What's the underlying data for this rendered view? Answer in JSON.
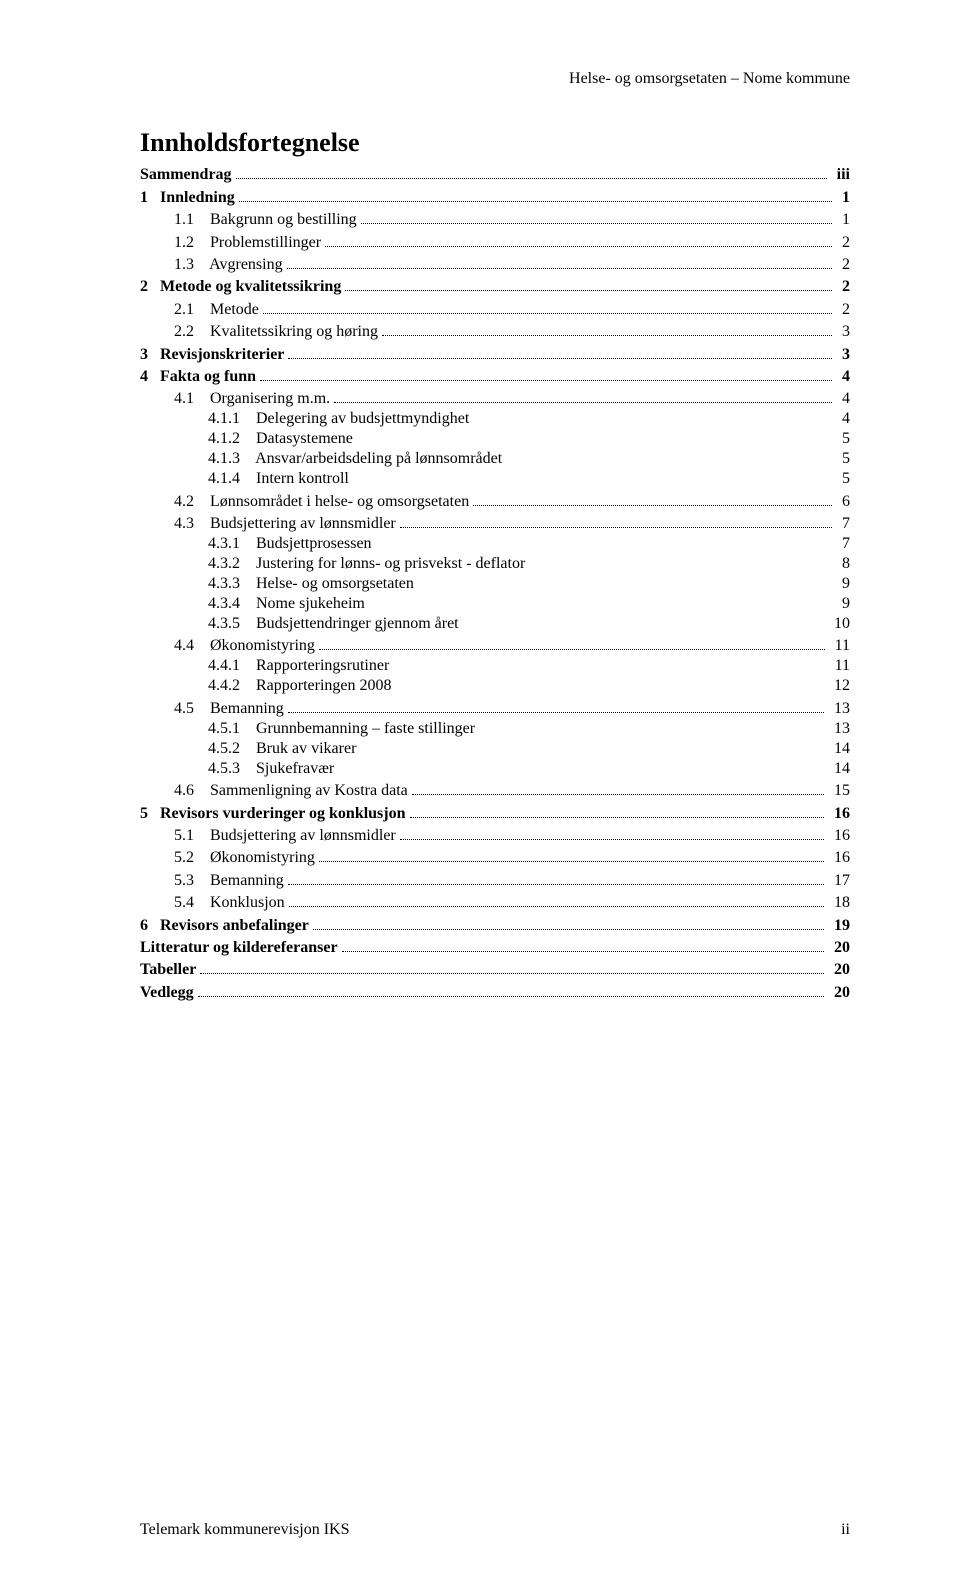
{
  "running_header": "Helse- og omsorgsetaten – Nome kommune",
  "title": "Innholdsfortegnelse",
  "toc": [
    {
      "level": 0,
      "bold": true,
      "dotted": true,
      "label": "Sammendrag",
      "page": "iii"
    },
    {
      "level": 0,
      "bold": true,
      "dotted": true,
      "label": "1   Innledning",
      "page": "1"
    },
    {
      "level": 1,
      "bold": false,
      "dotted": true,
      "label": "1.1    Bakgrunn og bestilling",
      "page": "1"
    },
    {
      "level": 1,
      "bold": false,
      "dotted": true,
      "label": "1.2    Problemstillinger",
      "page": "2"
    },
    {
      "level": 1,
      "bold": false,
      "dotted": true,
      "label": "1.3    Avgrensing",
      "page": "2"
    },
    {
      "level": 0,
      "bold": true,
      "dotted": true,
      "label": "2   Metode og kvalitetssikring",
      "page": "2"
    },
    {
      "level": 1,
      "bold": false,
      "dotted": true,
      "label": "2.1    Metode",
      "page": "2"
    },
    {
      "level": 1,
      "bold": false,
      "dotted": true,
      "label": "2.2    Kvalitetssikring og høring",
      "page": "3"
    },
    {
      "level": 0,
      "bold": true,
      "dotted": true,
      "label": "3   Revisjonskriterier",
      "page": "3"
    },
    {
      "level": 0,
      "bold": true,
      "dotted": true,
      "label": "4   Fakta og funn",
      "page": "4"
    },
    {
      "level": 1,
      "bold": false,
      "dotted": true,
      "label": "4.1    Organisering m.m.",
      "page": "4"
    },
    {
      "level": 2,
      "bold": false,
      "dotted": false,
      "label": "4.1.1    Delegering av budsjettmyndighet",
      "page": "4"
    },
    {
      "level": 2,
      "bold": false,
      "dotted": false,
      "label": "4.1.2    Datasystemene",
      "page": "5"
    },
    {
      "level": 2,
      "bold": false,
      "dotted": false,
      "label": "4.1.3    Ansvar/arbeidsdeling på lønnsområdet",
      "page": "5"
    },
    {
      "level": 2,
      "bold": false,
      "dotted": false,
      "label": "4.1.4    Intern kontroll",
      "page": "5"
    },
    {
      "level": 1,
      "bold": false,
      "dotted": true,
      "label": "4.2    Lønnsområdet i helse- og omsorgsetaten",
      "page": "6"
    },
    {
      "level": 1,
      "bold": false,
      "dotted": true,
      "label": "4.3    Budsjettering av lønnsmidler",
      "page": "7"
    },
    {
      "level": 2,
      "bold": false,
      "dotted": false,
      "label": "4.3.1    Budsjettprosessen",
      "page": "7"
    },
    {
      "level": 2,
      "bold": false,
      "dotted": false,
      "label": "4.3.2    Justering for lønns- og prisvekst - deflator",
      "page": "8"
    },
    {
      "level": 2,
      "bold": false,
      "dotted": false,
      "label": "4.3.3    Helse- og omsorgsetaten",
      "page": "9"
    },
    {
      "level": 2,
      "bold": false,
      "dotted": false,
      "label": "4.3.4    Nome sjukeheim",
      "page": "9"
    },
    {
      "level": 2,
      "bold": false,
      "dotted": false,
      "label": "4.3.5    Budsjettendringer gjennom året",
      "page": "10"
    },
    {
      "level": 1,
      "bold": false,
      "dotted": true,
      "label": "4.4    Økonomistyring",
      "page": "11"
    },
    {
      "level": 2,
      "bold": false,
      "dotted": false,
      "label": "4.4.1    Rapporteringsrutiner",
      "page": "11"
    },
    {
      "level": 2,
      "bold": false,
      "dotted": false,
      "label": "4.4.2    Rapporteringen 2008",
      "page": "12"
    },
    {
      "level": 1,
      "bold": false,
      "dotted": true,
      "label": "4.5    Bemanning",
      "page": "13"
    },
    {
      "level": 2,
      "bold": false,
      "dotted": false,
      "label": "4.5.1    Grunnbemanning – faste stillinger",
      "page": "13"
    },
    {
      "level": 2,
      "bold": false,
      "dotted": false,
      "label": "4.5.2    Bruk av vikarer",
      "page": "14"
    },
    {
      "level": 2,
      "bold": false,
      "dotted": false,
      "label": "4.5.3    Sjukefravær",
      "page": "14"
    },
    {
      "level": 1,
      "bold": false,
      "dotted": true,
      "label": "4.6    Sammenligning av Kostra data",
      "page": "15"
    },
    {
      "level": 0,
      "bold": true,
      "dotted": true,
      "label": "5   Revisors vurderinger og konklusjon",
      "page": "16"
    },
    {
      "level": 1,
      "bold": false,
      "dotted": true,
      "label": "5.1    Budsjettering av lønnsmidler",
      "page": "16"
    },
    {
      "level": 1,
      "bold": false,
      "dotted": true,
      "label": "5.2    Økonomistyring",
      "page": "16"
    },
    {
      "level": 1,
      "bold": false,
      "dotted": true,
      "label": "5.3    Bemanning",
      "page": "17"
    },
    {
      "level": 1,
      "bold": false,
      "dotted": true,
      "label": "5.4    Konklusjon",
      "page": "18"
    },
    {
      "level": 0,
      "bold": true,
      "dotted": true,
      "label": "6   Revisors anbefalinger",
      "page": "19"
    },
    {
      "level": 0,
      "bold": true,
      "dotted": true,
      "label": "Litteratur og kildereferanser",
      "page": "20"
    },
    {
      "level": 0,
      "bold": true,
      "dotted": true,
      "label": "Tabeller",
      "page": "20"
    },
    {
      "level": 0,
      "bold": true,
      "dotted": true,
      "label": "Vedlegg",
      "page": "20"
    }
  ],
  "footer_left": "Telemark kommunerevisjon IKS",
  "footer_right": "ii"
}
